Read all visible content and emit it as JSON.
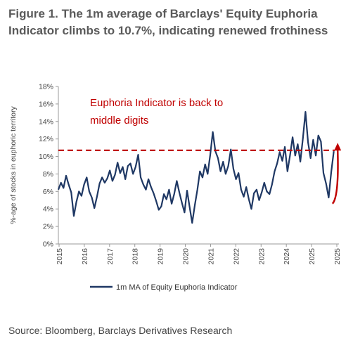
{
  "title": "Figure 1. The 1m average of Barclays' Equity Euphoria Indicator climbs to 10.7%, indicating renewed frothiness",
  "source": "Source: Bloomberg, Barclays Derivatives Research",
  "chart_data": {
    "type": "line",
    "ylabel": "%-age of stocks in euphoric territory",
    "xlabel": "",
    "ylim": [
      0,
      18
    ],
    "yticks": [
      "0%",
      "2%",
      "4%",
      "6%",
      "8%",
      "10%",
      "12%",
      "14%",
      "16%",
      "18%"
    ],
    "xticks": [
      "2015",
      "2016",
      "2017",
      "2018",
      "2019",
      "2020",
      "2021",
      "2022",
      "2023",
      "2024",
      "2025",
      "2025"
    ],
    "xrange": [
      2015.0,
      2025.9
    ],
    "grid": false,
    "legend_position": "bottom",
    "reference_line": {
      "value": 10.7,
      "style": "dashed",
      "color": "#c00000"
    },
    "annotation": {
      "lines": [
        "Euphoria Indicator is back to",
        "middle digits"
      ],
      "color": "#c00000"
    },
    "arrow": {
      "color": "#c00000",
      "from": [
        2025.65,
        4.6
      ],
      "to": [
        2025.85,
        11.4
      ]
    },
    "series": [
      {
        "name": "1m MA of Equity Euphoria Indicator",
        "color": "#1f3864",
        "x": [
          2015.0,
          2015.1,
          2015.2,
          2015.3,
          2015.4,
          2015.5,
          2015.6,
          2015.7,
          2015.8,
          2015.9,
          2016.0,
          2016.1,
          2016.2,
          2016.3,
          2016.4,
          2016.5,
          2016.6,
          2016.7,
          2016.8,
          2016.9,
          2017.0,
          2017.1,
          2017.2,
          2017.3,
          2017.4,
          2017.5,
          2017.6,
          2017.7,
          2017.8,
          2017.9,
          2018.0,
          2018.1,
          2018.2,
          2018.3,
          2018.4,
          2018.5,
          2018.6,
          2018.7,
          2018.8,
          2018.9,
          2019.0,
          2019.1,
          2019.2,
          2019.3,
          2019.4,
          2019.5,
          2019.6,
          2019.7,
          2019.8,
          2019.9,
          2020.0,
          2020.1,
          2020.2,
          2020.3,
          2020.4,
          2020.5,
          2020.6,
          2020.7,
          2020.8,
          2020.9,
          2021.0,
          2021.1,
          2021.2,
          2021.3,
          2021.4,
          2021.5,
          2021.6,
          2021.7,
          2021.8,
          2021.9,
          2022.0,
          2022.1,
          2022.2,
          2022.3,
          2022.4,
          2022.5,
          2022.6,
          2022.7,
          2022.8,
          2022.9,
          2023.0,
          2023.1,
          2023.2,
          2023.3,
          2023.4,
          2023.5,
          2023.6,
          2023.7,
          2023.8,
          2023.9,
          2024.0,
          2024.1,
          2024.2,
          2024.3,
          2024.4,
          2024.5,
          2024.6,
          2024.7,
          2024.8,
          2024.9,
          2025.0,
          2025.1,
          2025.2,
          2025.3,
          2025.4,
          2025.5,
          2025.6,
          2025.7
        ],
        "values": [
          6.2,
          7.0,
          6.4,
          7.8,
          6.8,
          5.9,
          3.2,
          4.8,
          6.0,
          5.5,
          6.8,
          7.6,
          6.0,
          5.3,
          4.1,
          5.4,
          6.9,
          7.6,
          7.0,
          7.5,
          8.4,
          7.2,
          7.9,
          9.3,
          8.1,
          8.8,
          7.4,
          8.9,
          9.2,
          8.0,
          8.8,
          10.2,
          7.6,
          6.8,
          6.2,
          7.4,
          6.5,
          5.8,
          4.9,
          3.9,
          4.3,
          5.7,
          5.1,
          6.2,
          4.6,
          5.7,
          7.2,
          5.9,
          4.7,
          3.6,
          6.1,
          4.2,
          2.4,
          4.4,
          6.2,
          8.3,
          7.6,
          9.1,
          8.0,
          10.2,
          12.8,
          10.6,
          9.8,
          8.3,
          9.4,
          8.0,
          8.9,
          10.8,
          8.6,
          7.4,
          8.1,
          6.2,
          5.4,
          6.5,
          5.1,
          4.0,
          5.8,
          6.2,
          5.0,
          5.9,
          7.0,
          6.0,
          5.7,
          6.8,
          8.3,
          9.2,
          10.5,
          9.5,
          11.1,
          8.3,
          10.1,
          12.2,
          10.1,
          11.4,
          9.4,
          12.1,
          15.1,
          11.6,
          9.8,
          11.9,
          10.1,
          12.4,
          11.7,
          8.1,
          6.9,
          5.3,
          8.2,
          10.6
        ]
      }
    ]
  }
}
